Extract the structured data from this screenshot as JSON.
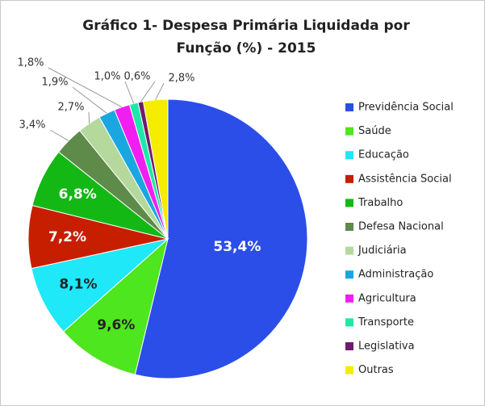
{
  "chart_data": {
    "type": "pie",
    "title": [
      "Gráfico 1- Despesa Primária Liquidada por",
      "Função (%) - 2015"
    ],
    "categories": [
      "Previdência Social",
      "Saúde",
      "Educação",
      "Assistência Social",
      "Trabalho",
      "Defesa Nacional",
      "Judiciária",
      "Administração",
      "Agricultura",
      "Transporte",
      "Legislativa",
      "Outras"
    ],
    "values": [
      53.4,
      9.6,
      8.1,
      7.2,
      6.8,
      3.4,
      2.7,
      1.9,
      1.8,
      1.0,
      0.6,
      2.8
    ],
    "value_labels": [
      "53,4%",
      "9,6%",
      "8,1%",
      "7,2%",
      "6,8%",
      "3,4%",
      "2,7%",
      "1,9%",
      "1,8%",
      "1,0%",
      "0,6%",
      "2,8%"
    ],
    "colors": [
      "#2b4ee8",
      "#4ee61e",
      "#1fe8f8",
      "#c81e00",
      "#13b814",
      "#5e8a4a",
      "#b5d89c",
      "#1aa7e0",
      "#f01ef0",
      "#1ee8a8",
      "#701c6c",
      "#f5ec00"
    ],
    "legend": "right"
  }
}
